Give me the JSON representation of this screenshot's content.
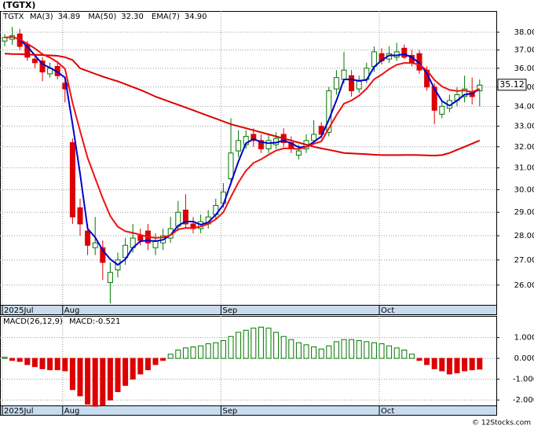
{
  "title": "(TGTX)",
  "footer": "© 12Stocks.com",
  "chart_data": [
    {
      "type": "candlestick",
      "ticker": "TGTX",
      "log_scale": true,
      "grid": true,
      "categories": [
        "2025Jul",
        null,
        null,
        null,
        null,
        null,
        null,
        null,
        "Aug",
        null,
        null,
        null,
        null,
        null,
        null,
        null,
        null,
        null,
        null,
        null,
        null,
        null,
        null,
        null,
        null,
        null,
        null,
        null,
        null,
        "Sep",
        null,
        null,
        null,
        null,
        null,
        null,
        null,
        null,
        null,
        null,
        null,
        null,
        null,
        null,
        null,
        null,
        null,
        null,
        null,
        null,
        "Oct",
        null,
        null,
        null,
        null,
        null,
        null,
        null,
        null,
        null,
        null,
        null,
        null,
        null
      ],
      "open": [
        37.5,
        37.6,
        37.9,
        37.3,
        36.5,
        36.4,
        35.7,
        36.1,
        35.2,
        32.2,
        29.2,
        28.2,
        27.5,
        27.5,
        26.1,
        26.6,
        27.1,
        27.5,
        28.0,
        28.2,
        27.5,
        27.7,
        27.9,
        28.4,
        29.1,
        28.5,
        28.3,
        28.5,
        28.9,
        29.4,
        30.5,
        31.8,
        32.1,
        32.6,
        32.3,
        31.9,
        32.1,
        32.6,
        32.2,
        31.6,
        31.9,
        32.3,
        33.0,
        32.7,
        34.9,
        35.4,
        35.6,
        34.9,
        35.4,
        36.1,
        36.8,
        36.5,
        36.6,
        37.1,
        36.7,
        36.8,
        35.9,
        35.0,
        33.6,
        33.9,
        34.3,
        34.5,
        34.7,
        34.8
      ],
      "high": [
        37.9,
        38.3,
        38.2,
        37.5,
        36.8,
        36.6,
        36.3,
        36.3,
        35.5,
        32.4,
        29.6,
        28.5,
        28.8,
        27.8,
        26.9,
        27.3,
        27.9,
        28.5,
        28.3,
        28.5,
        28.1,
        28.3,
        28.8,
        29.5,
        29.8,
        28.8,
        28.9,
        29.1,
        29.6,
        30.3,
        33.4,
        32.8,
        32.8,
        32.9,
        32.6,
        32.6,
        32.7,
        32.9,
        32.5,
        32.1,
        32.6,
        33.3,
        33.2,
        35.0,
        35.9,
        36.9,
        35.9,
        35.6,
        36.3,
        37.2,
        37.1,
        37.2,
        37.4,
        37.3,
        37.0,
        37.0,
        36.1,
        35.2,
        34.3,
        34.6,
        35.0,
        35.6,
        35.5,
        35.4
      ],
      "low": [
        37.2,
        37.3,
        37.0,
        36.4,
        36.0,
        35.3,
        35.5,
        35.4,
        34.2,
        28.5,
        28.0,
        27.2,
        27.2,
        26.2,
        25.3,
        26.3,
        26.8,
        27.3,
        27.6,
        27.4,
        27.2,
        27.4,
        27.7,
        28.2,
        28.3,
        28.1,
        28.1,
        28.3,
        28.7,
        29.2,
        30.2,
        31.5,
        31.9,
        32.0,
        31.7,
        31.7,
        31.9,
        32.0,
        31.7,
        31.4,
        31.7,
        32.1,
        32.4,
        32.5,
        34.6,
        35.2,
        34.5,
        34.7,
        35.2,
        35.8,
        36.2,
        36.3,
        36.4,
        36.5,
        36.1,
        35.7,
        34.8,
        33.1,
        33.4,
        33.7,
        34.0,
        34.2,
        34.1,
        34.0
      ],
      "close": [
        37.7,
        37.8,
        37.2,
        36.6,
        36.3,
        35.8,
        36.0,
        35.6,
        34.9,
        28.8,
        28.5,
        27.6,
        27.7,
        26.9,
        26.5,
        27.0,
        27.6,
        27.9,
        27.8,
        27.7,
        27.8,
        28.0,
        28.3,
        29.0,
        28.5,
        28.3,
        28.6,
        28.8,
        29.3,
        29.9,
        31.7,
        32.3,
        32.5,
        32.3,
        31.9,
        32.3,
        32.4,
        32.2,
        31.9,
        31.8,
        32.3,
        32.6,
        32.6,
        34.8,
        35.5,
        35.9,
        34.8,
        35.3,
        36.0,
        36.9,
        36.4,
        36.8,
        36.9,
        36.6,
        36.3,
        35.9,
        35.0,
        33.8,
        34.0,
        34.3,
        34.6,
        34.9,
        34.5,
        35.1
      ],
      "up_color": "#007700",
      "down_color": "#dd0000",
      "series": [
        {
          "name": "MA(3)",
          "last_label": "34.89",
          "color": "#0000cc",
          "width": 2,
          "values": [
            null,
            null,
            37.57,
            37.2,
            36.7,
            36.23,
            36.03,
            35.8,
            35.5,
            33.1,
            30.73,
            28.3,
            27.93,
            27.4,
            27.03,
            26.8,
            27.03,
            27.5,
            27.77,
            27.8,
            27.77,
            27.83,
            28.03,
            28.43,
            28.6,
            28.6,
            28.47,
            28.57,
            28.9,
            29.33,
            30.3,
            31.3,
            32.17,
            32.37,
            32.23,
            32.17,
            32.2,
            32.3,
            32.17,
            31.97,
            32.0,
            32.23,
            32.5,
            33.33,
            34.3,
            35.4,
            35.4,
            35.33,
            35.37,
            36.07,
            36.43,
            36.7,
            36.7,
            36.77,
            36.6,
            36.27,
            35.73,
            34.9,
            34.27,
            34.03,
            34.3,
            34.6,
            34.67,
            34.89
          ]
        },
        {
          "name": "MA(50)",
          "last_label": "32.30",
          "color": "#dd0000",
          "width": 2,
          "values": [
            36.8,
            36.78,
            36.77,
            36.75,
            36.73,
            36.72,
            36.7,
            36.68,
            36.6,
            36.45,
            36.0,
            35.85,
            35.7,
            35.55,
            35.42,
            35.3,
            35.15,
            35.0,
            34.85,
            34.68,
            34.5,
            34.36,
            34.22,
            34.08,
            33.94,
            33.8,
            33.66,
            33.52,
            33.38,
            33.24,
            33.1,
            33.0,
            32.9,
            32.8,
            32.7,
            32.6,
            32.5,
            32.4,
            32.3,
            32.2,
            32.1,
            32.0,
            31.92,
            31.85,
            31.78,
            31.7,
            31.68,
            31.66,
            31.64,
            31.62,
            31.6,
            31.6,
            31.6,
            31.61,
            31.61,
            31.6,
            31.59,
            31.58,
            31.6,
            31.7,
            31.85,
            32.0,
            32.15,
            32.3
          ]
        },
        {
          "name": "EMA(7)",
          "last_label": "34.90",
          "color": "#ee1111",
          "width": 2,
          "values": [
            37.7,
            37.73,
            37.6,
            37.35,
            37.09,
            36.77,
            36.58,
            36.33,
            35.97,
            34.18,
            32.76,
            31.47,
            30.53,
            29.62,
            28.84,
            28.38,
            28.19,
            28.12,
            28.04,
            27.95,
            27.91,
            27.93,
            28.02,
            28.27,
            28.33,
            28.32,
            28.39,
            28.5,
            28.7,
            29.0,
            29.68,
            30.33,
            30.87,
            31.23,
            31.4,
            31.62,
            31.82,
            31.92,
            31.92,
            31.89,
            31.99,
            32.14,
            32.26,
            32.9,
            33.55,
            34.14,
            34.3,
            34.55,
            34.91,
            35.41,
            35.66,
            35.95,
            36.19,
            36.29,
            36.29,
            36.19,
            35.89,
            35.37,
            35.03,
            34.85,
            34.79,
            34.82,
            34.74,
            34.9
          ]
        }
      ],
      "last_price": 35.12,
      "ylim": [
        25.24,
        39.23
      ],
      "yticks": [
        {
          "value": 26,
          "label": "26.00"
        },
        {
          "value": 27,
          "label": "27.00"
        },
        {
          "value": 28,
          "label": "28.00"
        },
        {
          "value": 29,
          "label": "29.00"
        },
        {
          "value": 30,
          "label": "30.00"
        },
        {
          "value": 31,
          "label": "31.00"
        },
        {
          "value": 32,
          "label": "32.00"
        },
        {
          "value": 33,
          "label": "33.00"
        },
        {
          "value": 34,
          "label": "34.00"
        },
        {
          "value": 35,
          "label": "35.00"
        },
        {
          "value": 36,
          "label": "36.00"
        },
        {
          "value": 37,
          "label": "37.00"
        },
        {
          "value": 38,
          "label": "38.00"
        }
      ]
    },
    {
      "type": "bar",
      "title": "MACD(26,12,9)",
      "subtitle": "MACD:-0.521",
      "grid": true,
      "categories": [
        "2025Jul",
        null,
        null,
        null,
        null,
        null,
        null,
        null,
        "Aug",
        null,
        null,
        null,
        null,
        null,
        null,
        null,
        null,
        null,
        null,
        null,
        null,
        null,
        null,
        null,
        null,
        null,
        null,
        null,
        null,
        "Sep",
        null,
        null,
        null,
        null,
        null,
        null,
        null,
        null,
        null,
        null,
        null,
        null,
        null,
        null,
        null,
        null,
        null,
        null,
        null,
        null,
        "Oct",
        null,
        null,
        null,
        null,
        null,
        null,
        null,
        null,
        null,
        null,
        null,
        null,
        null
      ],
      "values": [
        0.05,
        -0.1,
        -0.15,
        -0.3,
        -0.4,
        -0.5,
        -0.55,
        -0.55,
        -0.6,
        -1.5,
        -1.8,
        -2.2,
        -2.3,
        -2.25,
        -2.0,
        -1.6,
        -1.3,
        -1.0,
        -0.75,
        -0.55,
        -0.3,
        -0.1,
        0.2,
        0.4,
        0.5,
        0.55,
        0.6,
        0.7,
        0.75,
        0.85,
        1.05,
        1.25,
        1.35,
        1.45,
        1.5,
        1.45,
        1.25,
        1.05,
        0.9,
        0.75,
        0.65,
        0.55,
        0.45,
        0.6,
        0.8,
        0.9,
        0.9,
        0.85,
        0.8,
        0.75,
        0.7,
        0.6,
        0.5,
        0.4,
        0.2,
        -0.1,
        -0.3,
        -0.5,
        -0.6,
        -0.75,
        -0.7,
        -0.6,
        -0.55,
        -0.52
      ],
      "up_color": "#007700",
      "down_color": "#dd0000",
      "ylim": [
        -2.26,
        2.04
      ],
      "yticks": [
        {
          "value": -2,
          "label": "-2.000"
        },
        {
          "value": -1,
          "label": "-1.000"
        },
        {
          "value": 0,
          "label": "0.000"
        },
        {
          "value": 1,
          "label": "1.000"
        }
      ]
    }
  ]
}
